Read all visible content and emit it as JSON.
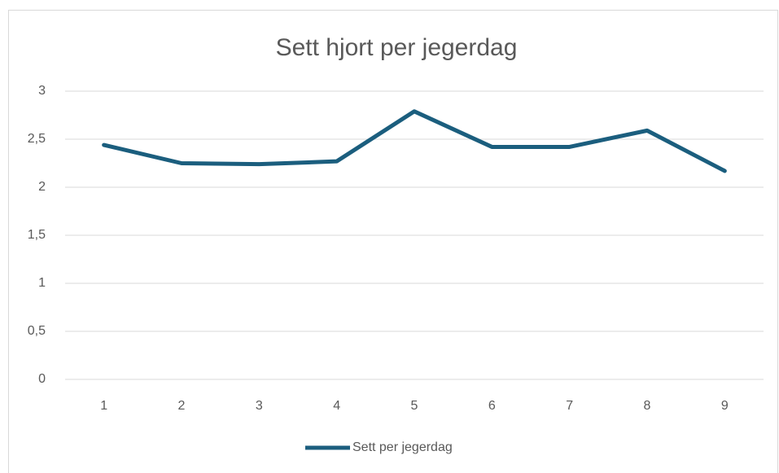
{
  "chart_data": {
    "type": "line",
    "title": "Sett hjort per jegerdag",
    "categories": [
      "1",
      "2",
      "3",
      "4",
      "5",
      "6",
      "7",
      "8",
      "9"
    ],
    "series": [
      {
        "name": "Sett per jegerdag",
        "color": "#1b5e7e",
        "values": [
          2.44,
          2.25,
          2.24,
          2.27,
          2.79,
          2.42,
          2.42,
          2.59,
          2.17
        ]
      }
    ],
    "ylim": [
      0,
      3
    ],
    "yticks": [
      0,
      {
        "value": 0.5,
        "label": "0,5"
      },
      1,
      {
        "value": 1.5,
        "label": "1,5"
      },
      2,
      {
        "value": 2.5,
        "label": "2,5"
      },
      3
    ],
    "grid": true,
    "legend": "bottom"
  }
}
